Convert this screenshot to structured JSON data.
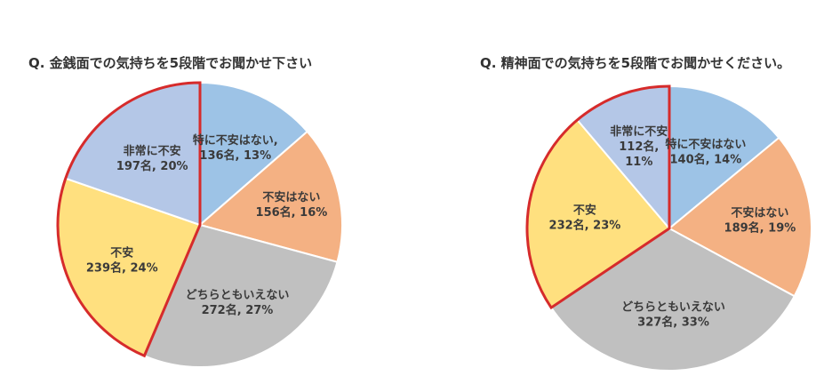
{
  "colors": {
    "特に不安はない": "#9dc3e6",
    "不安はない": "#f4b183",
    "どちらともいえない": "#c0c0c0",
    "不安": "#ffe07f",
    "非常に不安": "#b4c7e7",
    "highlight_outline": "#d62b2b"
  },
  "chart_data": [
    {
      "type": "pie",
      "title": "Q. 金銭面での気持ちを5段階でお聞かせ下さい",
      "start_angle_deg": 0,
      "direction": "clockwise",
      "highlighted": [
        "不安",
        "非常に不安"
      ],
      "slices": [
        {
          "category": "特に不安はない",
          "count": 136,
          "percent": 13,
          "label_lines": [
            "特に不安はない,",
            "136名, 13%"
          ]
        },
        {
          "category": "不安はない",
          "count": 156,
          "percent": 16,
          "label_lines": [
            "不安はない",
            "156名, 16%"
          ]
        },
        {
          "category": "どちらともいえない",
          "count": 272,
          "percent": 27,
          "label_lines": [
            "どちらともいえない",
            "272名, 27%"
          ]
        },
        {
          "category": "不安",
          "count": 239,
          "percent": 24,
          "label_lines": [
            "不安",
            "239名, 24%"
          ]
        },
        {
          "category": "非常に不安",
          "count": 197,
          "percent": 20,
          "label_lines": [
            "非常に不安",
            "197名, 20%"
          ]
        }
      ]
    },
    {
      "type": "pie",
      "title": "Q. 精神面での気持ちを5段階でお聞かせください。",
      "start_angle_deg": 0,
      "direction": "clockwise",
      "highlighted": [
        "不安",
        "非常に不安"
      ],
      "slices": [
        {
          "category": "特に不安はない",
          "count": 140,
          "percent": 14,
          "label_lines": [
            "特に不安はない",
            "140名, 14%"
          ]
        },
        {
          "category": "不安はない",
          "count": 189,
          "percent": 19,
          "label_lines": [
            "不安はない",
            "189名, 19%"
          ]
        },
        {
          "category": "どちらともいえない",
          "count": 327,
          "percent": 33,
          "label_lines": [
            "どちらともいえない",
            "327名, 33%"
          ]
        },
        {
          "category": "不安",
          "count": 232,
          "percent": 23,
          "label_lines": [
            "不安",
            "232名, 23%"
          ]
        },
        {
          "category": "非常に不安",
          "count": 112,
          "percent": 11,
          "label_lines": [
            "非常に不安",
            "112名,",
            "11%"
          ]
        }
      ]
    }
  ]
}
